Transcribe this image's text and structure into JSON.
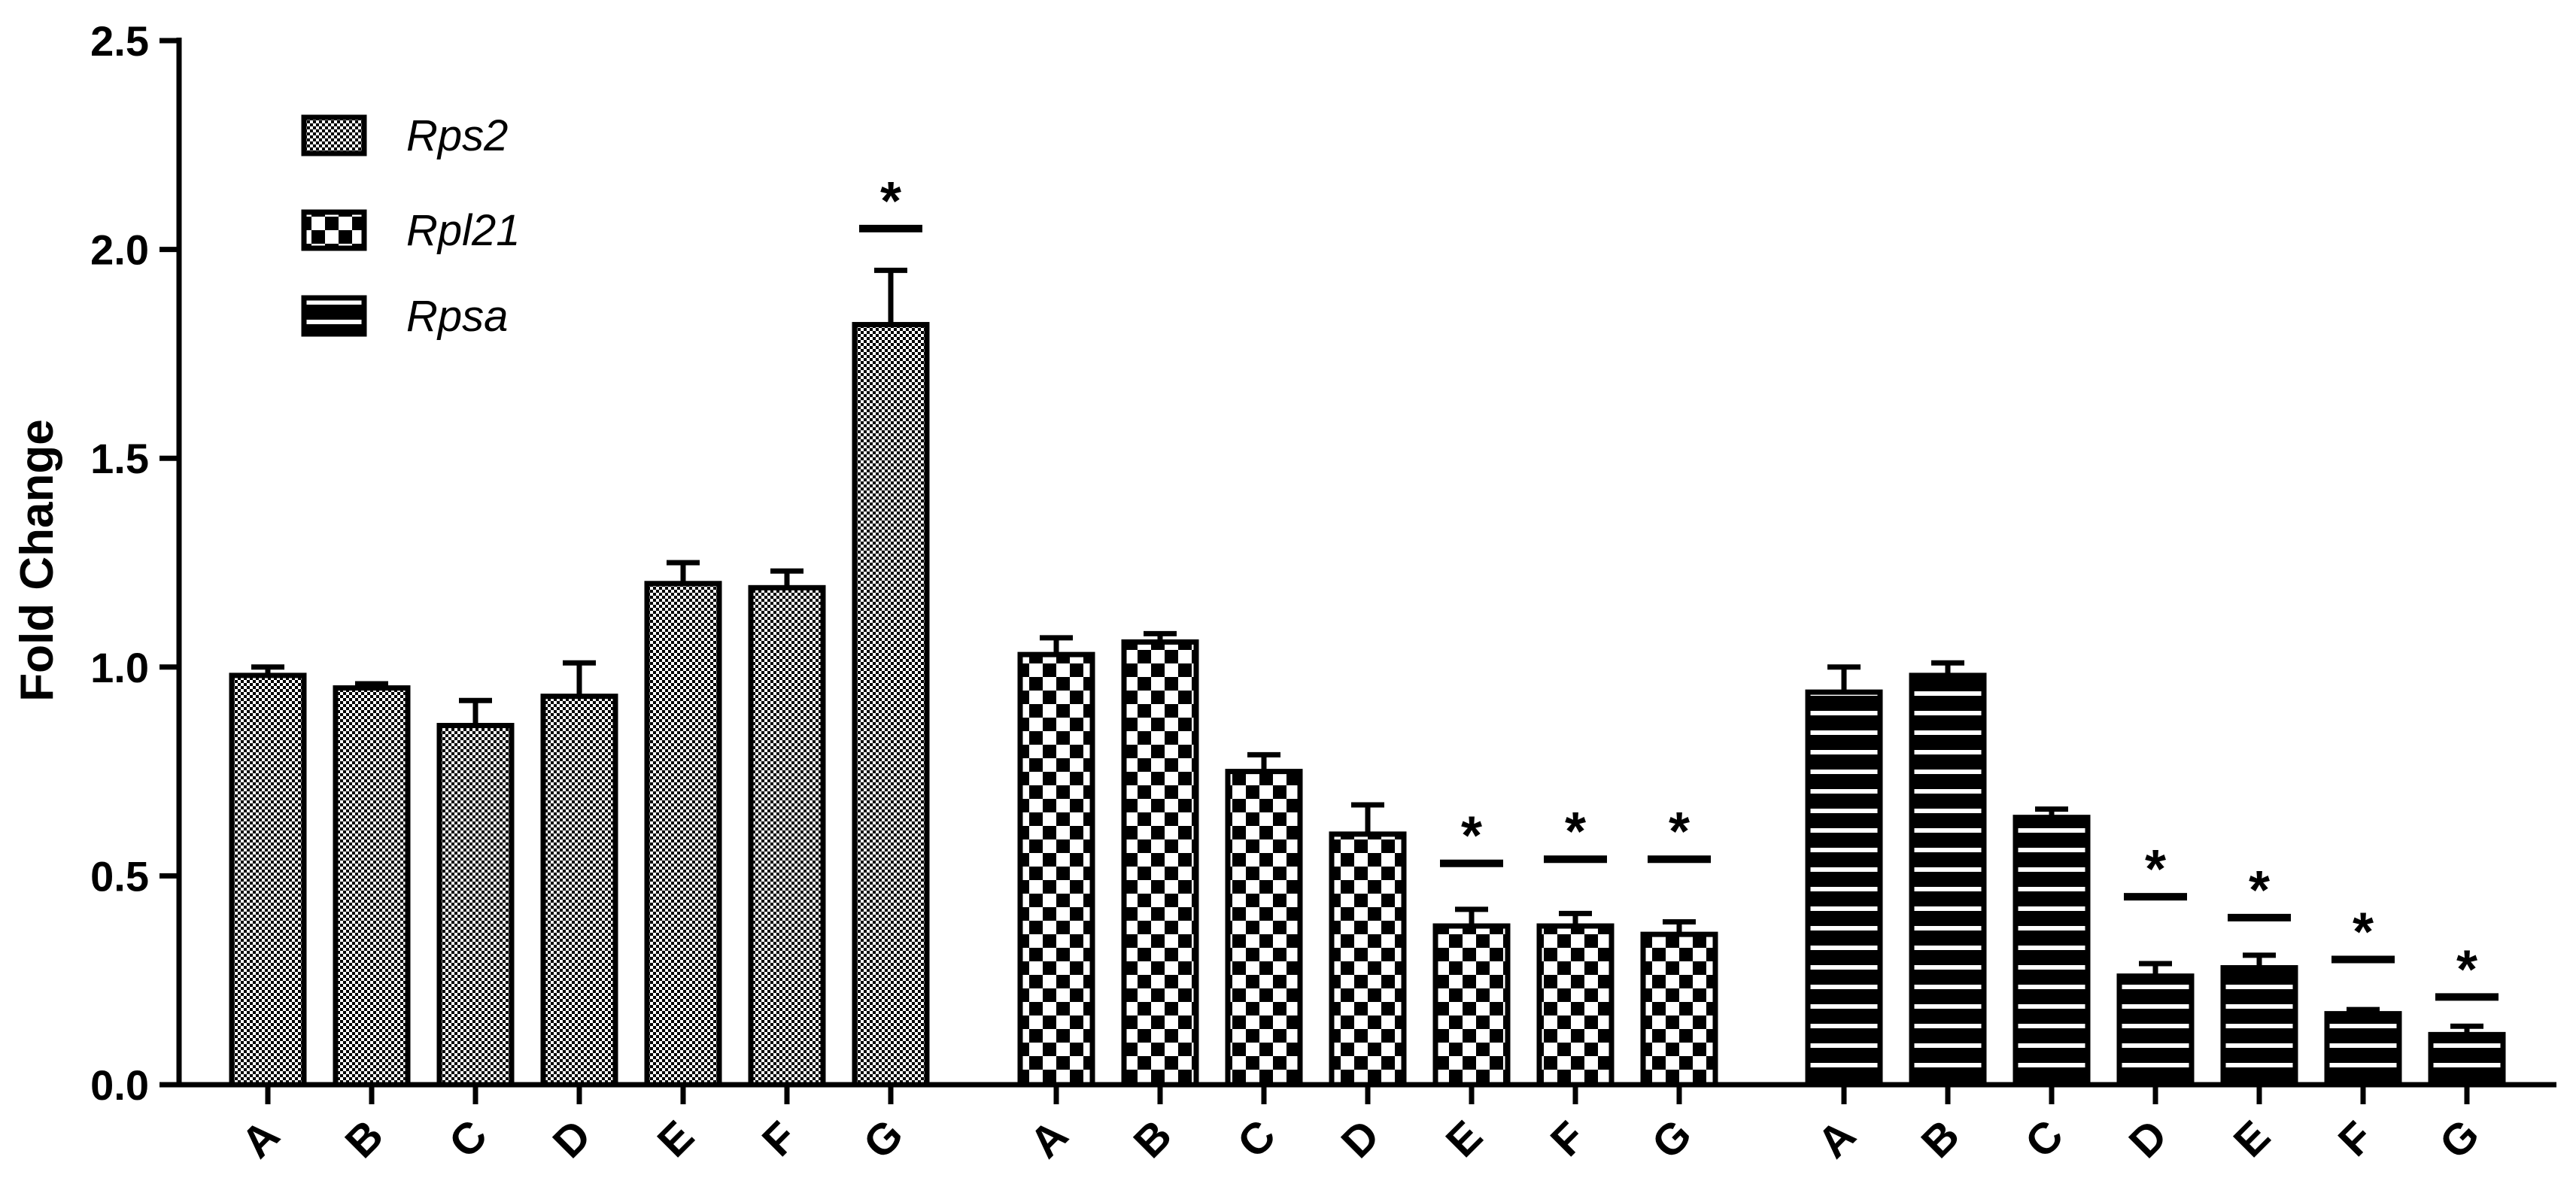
{
  "chart_data": {
    "type": "bar",
    "title": "",
    "xlabel": "",
    "ylabel": "Fold Change",
    "ylim": [
      0,
      2.5
    ],
    "yticks": [
      "0.0",
      "0.5",
      "1.0",
      "1.5",
      "2.0",
      "2.5"
    ],
    "categories": [
      "A",
      "B",
      "C",
      "D",
      "E",
      "F",
      "G"
    ],
    "legend_position": "top-left",
    "grid": false,
    "series": [
      {
        "name": "Rps2",
        "pattern": "fine-dots",
        "values": [
          0.98,
          0.95,
          0.86,
          0.93,
          1.2,
          1.19,
          1.82
        ],
        "errors": [
          0.02,
          0.01,
          0.06,
          0.08,
          0.05,
          0.04,
          0.13
        ],
        "significant": [
          false,
          false,
          false,
          false,
          false,
          false,
          true
        ],
        "sig_line": [
          null,
          null,
          null,
          null,
          null,
          null,
          2.05
        ]
      },
      {
        "name": "Rpl21",
        "pattern": "checkerboard",
        "values": [
          1.03,
          1.06,
          0.75,
          0.6,
          0.38,
          0.38,
          0.36
        ],
        "errors": [
          0.04,
          0.02,
          0.04,
          0.07,
          0.04,
          0.03,
          0.03
        ],
        "significant": [
          false,
          false,
          false,
          false,
          true,
          true,
          true
        ],
        "sig_line": [
          null,
          null,
          null,
          null,
          0.53,
          0.54,
          0.54
        ]
      },
      {
        "name": "Rpsa",
        "pattern": "horizontal-stripes",
        "values": [
          0.94,
          0.98,
          0.64,
          0.26,
          0.28,
          0.17,
          0.12
        ],
        "errors": [
          0.06,
          0.03,
          0.02,
          0.03,
          0.03,
          0.01,
          0.02
        ],
        "significant": [
          false,
          false,
          false,
          true,
          true,
          true,
          true
        ],
        "sig_line": [
          null,
          null,
          null,
          0.45,
          0.4,
          0.3,
          0.21
        ]
      }
    ],
    "significance_marker": "*"
  },
  "colors": {
    "bar_fill": "#ffffff",
    "ink": "#000000"
  }
}
